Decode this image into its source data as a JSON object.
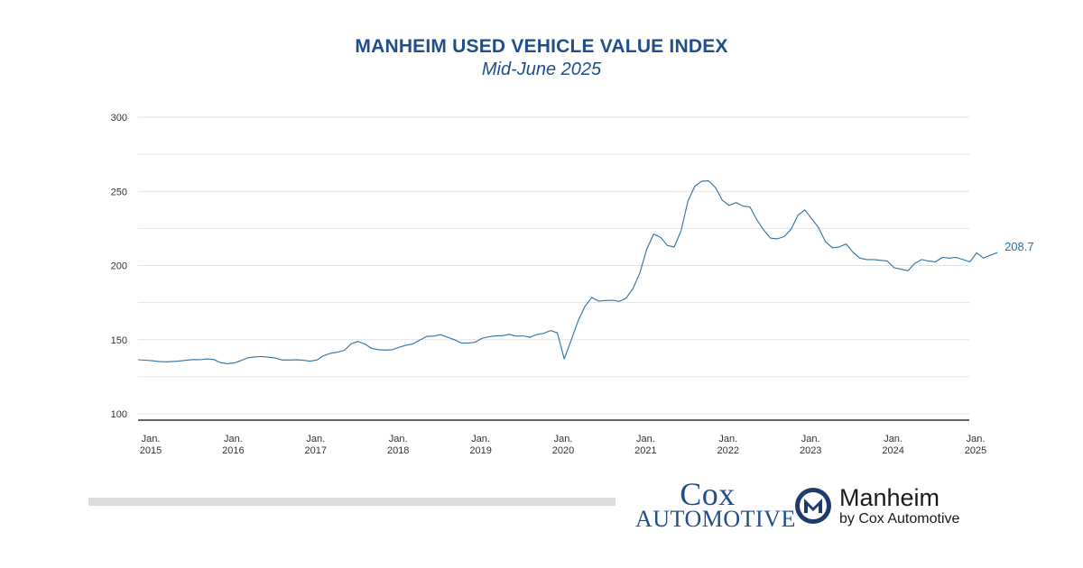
{
  "chart_data": {
    "type": "line",
    "title": "MANHEIM USED VEHICLE VALUE INDEX",
    "subtitle": "Mid-June 2025",
    "ylim": [
      100,
      300
    ],
    "yticks": [
      300,
      250,
      200,
      150,
      100
    ],
    "xlim": [
      "2015-01",
      "2025-06"
    ],
    "xticks": [
      {
        "month": "Jan.",
        "year": "2015",
        "date": "2015-01"
      },
      {
        "month": "Jan.",
        "year": "2016",
        "date": "2016-01"
      },
      {
        "month": "Jan.",
        "year": "2017",
        "date": "2017-01"
      },
      {
        "month": "Jan.",
        "year": "2018",
        "date": "2018-01"
      },
      {
        "month": "Jan.",
        "year": "2019",
        "date": "2019-01"
      },
      {
        "month": "Jan.",
        "year": "2020",
        "date": "2020-01"
      },
      {
        "month": "Jan.",
        "year": "2021",
        "date": "2021-01"
      },
      {
        "month": "Jan.",
        "year": "2022",
        "date": "2022-01"
      },
      {
        "month": "Jan.",
        "year": "2023",
        "date": "2023-01"
      },
      {
        "month": "Jan.",
        "year": "2024",
        "date": "2024-01"
      },
      {
        "month": "Jan.",
        "year": "2025",
        "date": "2025-01"
      }
    ],
    "grid": true,
    "line_color": "#2a6fa8",
    "end_label": "208.7",
    "series": [
      {
        "x": [
          "2015-01",
          "2015-02",
          "2015-03",
          "2015-04",
          "2015-05",
          "2015-06",
          "2015-07",
          "2015-08",
          "2015-09",
          "2015-10",
          "2015-11",
          "2015-12",
          "2016-01",
          "2016-02",
          "2016-03",
          "2016-04",
          "2016-05",
          "2016-06",
          "2016-07",
          "2016-08",
          "2016-09",
          "2016-10",
          "2016-11",
          "2016-12",
          "2017-01",
          "2017-02",
          "2017-03",
          "2017-04",
          "2017-05",
          "2017-06",
          "2017-07",
          "2017-08",
          "2017-09",
          "2017-10",
          "2017-11",
          "2017-12",
          "2018-01",
          "2018-02",
          "2018-03",
          "2018-04",
          "2018-05",
          "2018-06",
          "2018-07",
          "2018-08",
          "2018-09",
          "2018-10",
          "2018-11",
          "2018-12",
          "2019-01",
          "2019-02",
          "2019-03",
          "2019-04",
          "2019-05",
          "2019-06",
          "2019-07",
          "2019-08",
          "2019-09",
          "2019-10",
          "2019-11",
          "2019-12",
          "2020-01",
          "2020-02",
          "2020-03",
          "2020-04",
          "2020-05",
          "2020-06",
          "2020-07",
          "2020-08",
          "2020-09",
          "2020-10",
          "2020-11",
          "2020-12",
          "2021-01",
          "2021-02",
          "2021-03",
          "2021-04",
          "2021-05",
          "2021-06",
          "2021-07",
          "2021-08",
          "2021-09",
          "2021-10",
          "2021-11",
          "2021-12",
          "2022-01",
          "2022-02",
          "2022-03",
          "2022-04",
          "2022-05",
          "2022-06",
          "2022-07",
          "2022-08",
          "2022-09",
          "2022-10",
          "2022-11",
          "2022-12",
          "2023-01",
          "2023-02",
          "2023-03",
          "2023-04",
          "2023-05",
          "2023-06",
          "2023-07",
          "2023-08",
          "2023-09",
          "2023-10",
          "2023-11",
          "2023-12",
          "2024-01",
          "2024-02",
          "2024-03",
          "2024-04",
          "2024-05",
          "2024-06",
          "2024-07",
          "2024-08",
          "2024-09",
          "2024-10",
          "2024-11",
          "2024-12",
          "2025-01",
          "2025-02",
          "2025-03",
          "2025-04",
          "2025-05",
          "2025-06"
        ],
        "values": [
          136.5,
          136.2,
          135.8,
          135.3,
          135.1,
          135.3,
          135.6,
          136.1,
          136.6,
          136.5,
          137.0,
          136.6,
          134.5,
          133.8,
          134.3,
          136.0,
          137.8,
          138.4,
          138.6,
          138.2,
          137.6,
          136.3,
          136.3,
          136.4,
          136.1,
          135.5,
          136.3,
          139.2,
          140.8,
          141.6,
          142.8,
          147.2,
          148.8,
          147.0,
          144.1,
          143.2,
          143.0,
          143.2,
          144.9,
          146.3,
          147.2,
          149.8,
          152.2,
          152.4,
          153.4,
          151.7,
          150.0,
          147.8,
          147.7,
          148.2,
          150.8,
          152.0,
          152.5,
          152.7,
          153.6,
          152.4,
          152.6,
          151.6,
          153.5,
          154.2,
          156.2,
          154.6,
          137.0,
          149.5,
          162.6,
          172.4,
          178.5,
          176.0,
          176.4,
          176.6,
          175.8,
          178.0,
          184.5,
          195.0,
          211.0,
          221.2,
          219.0,
          213.5,
          212.5,
          223.5,
          243.5,
          253.5,
          256.9,
          257.1,
          252.5,
          244.0,
          240.5,
          242.5,
          240.0,
          239.5,
          231.0,
          224.0,
          218.5,
          218.0,
          219.5,
          224.5,
          234.0,
          237.5,
          231.5,
          225.5,
          216.0,
          212.0,
          212.5,
          214.5,
          209.0,
          205.0,
          204.0,
          204.0,
          203.5,
          203.0,
          198.5,
          197.5,
          196.5,
          201.5,
          204.0,
          203.0,
          202.5,
          205.5,
          205.0,
          205.5,
          204.0,
          202.5,
          208.5,
          205.0,
          207.0,
          208.7
        ]
      }
    ]
  },
  "logos": {
    "cox_top": "Cox",
    "cox_bottom": "AUTOMOTIVE",
    "manheim_name": "Manheim",
    "manheim_sub": "by Cox Automotive"
  }
}
